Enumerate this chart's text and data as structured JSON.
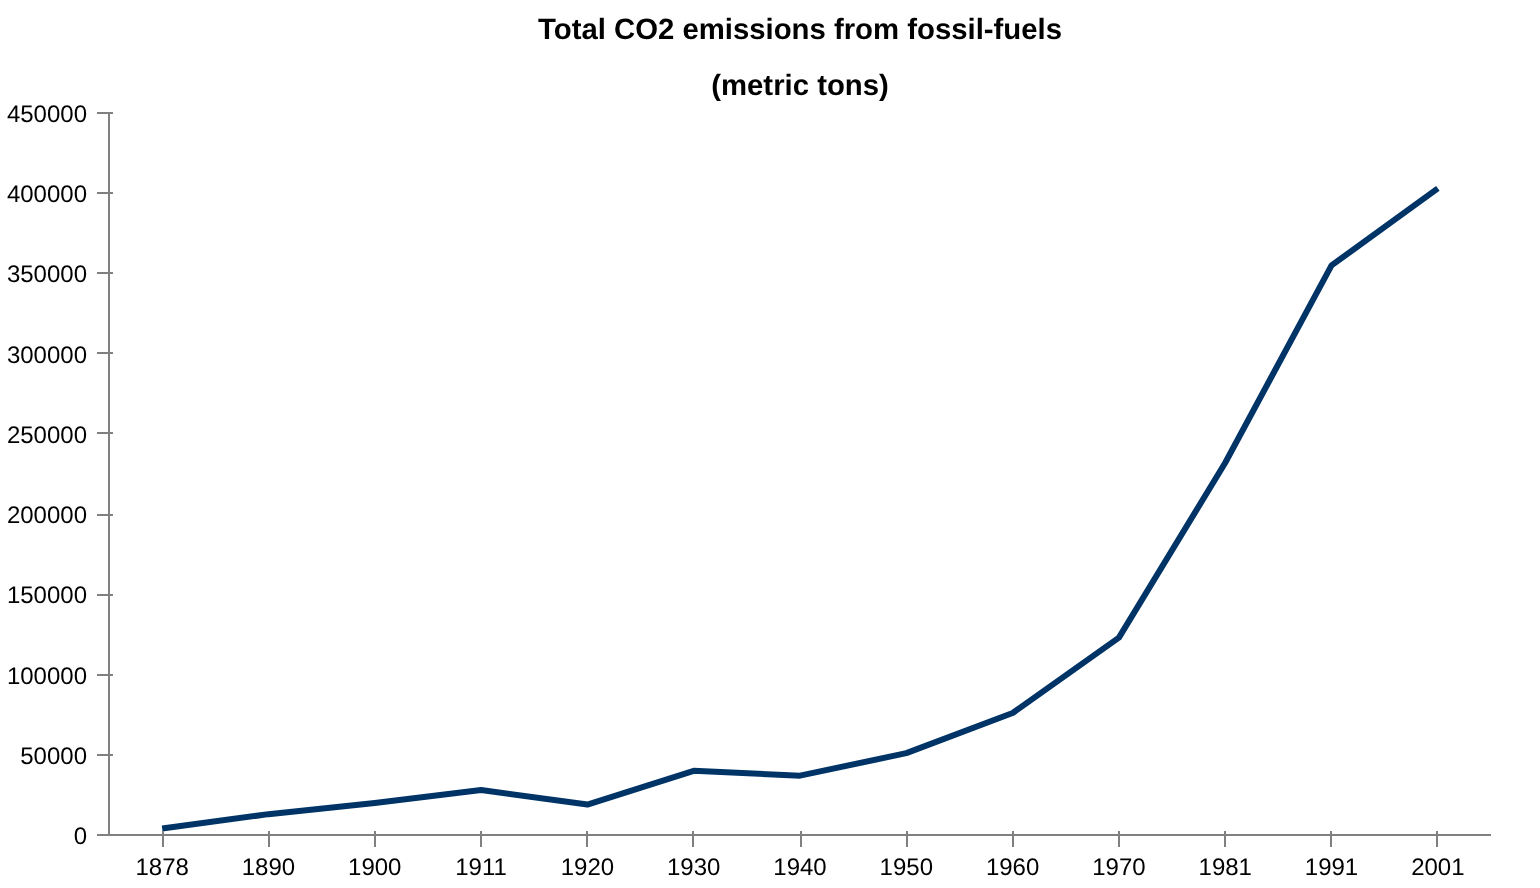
{
  "chart_data": {
    "type": "line",
    "title": "Total CO2 emissions from fossil-fuels",
    "subtitle": "(metric tons)",
    "categories": [
      "1878",
      "1890",
      "1900",
      "1911",
      "1920",
      "1930",
      "1940",
      "1950",
      "1960",
      "1970",
      "1981",
      "1991",
      "2001"
    ],
    "series": [
      {
        "color": "#003366",
        "values": [
          4000,
          13000,
          20000,
          28000,
          19000,
          40000,
          37000,
          51000,
          76000,
          123000,
          232000,
          355000,
          403000
        ]
      }
    ],
    "ylim": [
      0,
      450000
    ],
    "yticks": [
      0,
      50000,
      100000,
      150000,
      200000,
      250000,
      300000,
      350000,
      400000,
      450000
    ],
    "grid": false,
    "marker": "none",
    "line_style": "solid"
  }
}
